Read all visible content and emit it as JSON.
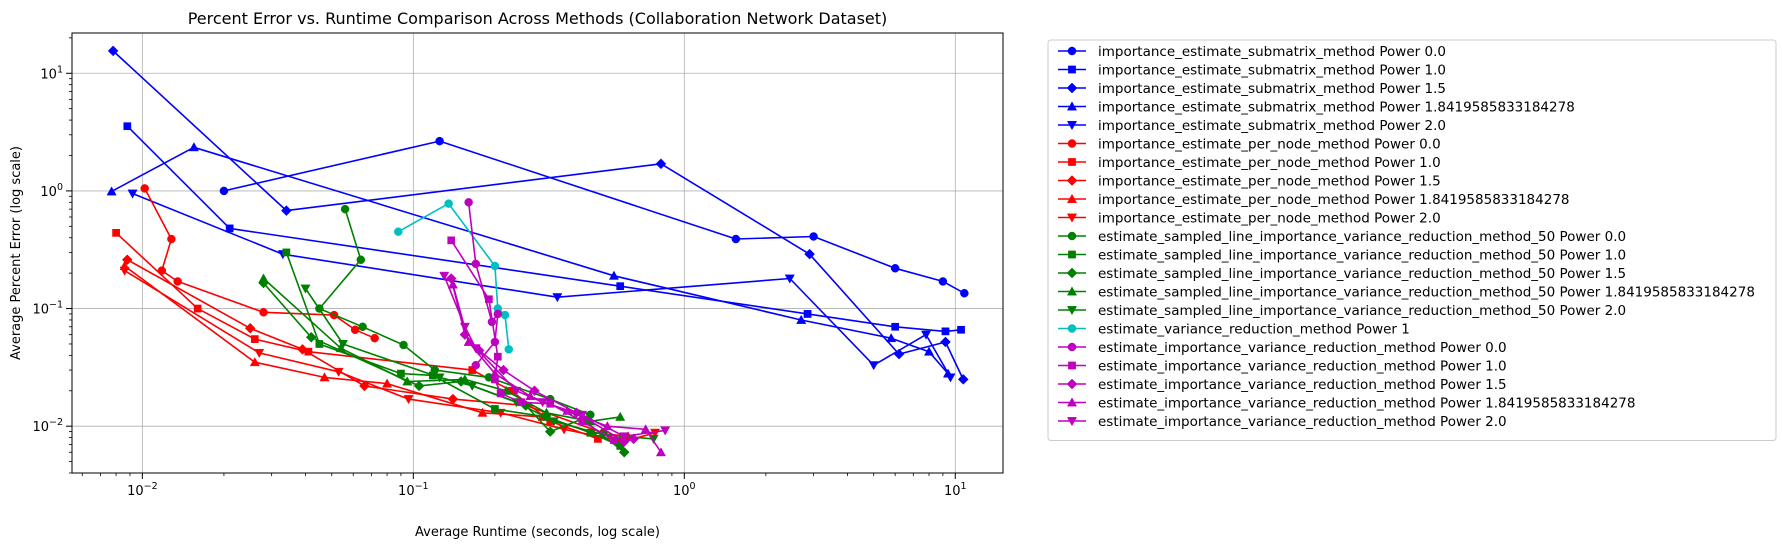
{
  "chart_data": {
    "type": "line",
    "title": "Percent Error vs. Runtime Comparison Across Methods (Collaboration Network Dataset)",
    "xlabel": "Average Runtime (seconds, log scale)",
    "ylabel": "Average Percent Error (log scale)",
    "xscale": "log",
    "yscale": "log",
    "xlim": [
      0.0055,
      15
    ],
    "ylim": [
      0.004,
      22
    ],
    "xticks": [
      {
        "value": 0.01,
        "base": "10",
        "exp": "−2"
      },
      {
        "value": 0.1,
        "base": "10",
        "exp": "−1"
      },
      {
        "value": 1,
        "base": "10",
        "exp": "0"
      },
      {
        "value": 10,
        "base": "10",
        "exp": "1"
      }
    ],
    "yticks": [
      {
        "value": 0.01,
        "base": "10",
        "exp": "−2"
      },
      {
        "value": 0.1,
        "base": "10",
        "exp": "−1"
      },
      {
        "value": 1,
        "base": "10",
        "exp": "0"
      },
      {
        "value": 10,
        "base": "10",
        "exp": "1"
      }
    ],
    "grid": true,
    "legend_position": "outside-right",
    "series": [
      {
        "name": "importance_estimate_submatrix_method Power 0.0",
        "color": "#0000ff",
        "marker": "circle",
        "x": [
          0.02,
          0.125,
          1.55,
          3.0,
          6.0,
          9.0,
          10.8
        ],
        "y": [
          1.0,
          2.65,
          0.39,
          0.41,
          0.22,
          0.17,
          0.135
        ]
      },
      {
        "name": "importance_estimate_submatrix_method Power 1.0",
        "color": "#0000ff",
        "marker": "square",
        "x": [
          0.0088,
          0.021,
          0.58,
          2.85,
          6.0,
          9.2,
          10.5
        ],
        "y": [
          3.55,
          0.48,
          0.155,
          0.09,
          0.07,
          0.064,
          0.066
        ]
      },
      {
        "name": "importance_estimate_submatrix_method Power 1.5",
        "color": "#0000ff",
        "marker": "diamond",
        "x": [
          0.0078,
          0.034,
          0.82,
          2.9,
          6.2,
          9.2,
          10.7
        ],
        "y": [
          15.5,
          0.68,
          1.7,
          0.29,
          0.041,
          0.052,
          0.025
        ]
      },
      {
        "name": "importance_estimate_submatrix_method Power 1.8419585833184278",
        "color": "#0000ff",
        "marker": "triangle-up",
        "x": [
          0.0077,
          0.0155,
          0.55,
          2.7,
          5.8,
          8.0,
          9.4
        ],
        "y": [
          0.99,
          2.35,
          0.19,
          0.08,
          0.056,
          0.043,
          0.028
        ]
      },
      {
        "name": "importance_estimate_submatrix_method Power 2.0",
        "color": "#0000ff",
        "marker": "triangle-down",
        "x": [
          0.0092,
          0.033,
          0.34,
          2.45,
          5.0,
          7.8,
          9.6
        ],
        "y": [
          0.95,
          0.29,
          0.125,
          0.18,
          0.033,
          0.06,
          0.026
        ]
      },
      {
        "name": "importance_estimate_per_node_method Power 0.0",
        "color": "#ff0000",
        "marker": "circle",
        "x": [
          0.0102,
          0.0128,
          0.0118,
          0.0135,
          0.028,
          0.051,
          0.061,
          0.072
        ],
        "y": [
          1.05,
          0.39,
          0.21,
          0.17,
          0.093,
          0.088,
          0.066,
          0.056
        ]
      },
      {
        "name": "importance_estimate_per_node_method Power 1.0",
        "color": "#ff0000",
        "marker": "square",
        "x": [
          0.008,
          0.016,
          0.026,
          0.041,
          0.165,
          0.23,
          0.32,
          0.48
        ],
        "y": [
          0.44,
          0.1,
          0.055,
          0.043,
          0.03,
          0.02,
          0.011,
          0.0078
        ]
      },
      {
        "name": "importance_estimate_per_node_method Power 1.5",
        "color": "#ff0000",
        "marker": "diamond",
        "x": [
          0.0088,
          0.025,
          0.039,
          0.066,
          0.14,
          0.26,
          0.5,
          0.58
        ],
        "y": [
          0.26,
          0.068,
          0.045,
          0.022,
          0.017,
          0.015,
          0.0088,
          0.0075
        ]
      },
      {
        "name": "importance_estimate_per_node_method Power 1.8419585833184278",
        "color": "#ff0000",
        "marker": "triangle-up",
        "x": [
          0.0086,
          0.026,
          0.047,
          0.08,
          0.18,
          0.3,
          0.46,
          0.62
        ],
        "y": [
          0.23,
          0.035,
          0.026,
          0.023,
          0.013,
          0.012,
          0.0088,
          0.0082
        ]
      },
      {
        "name": "importance_estimate_per_node_method Power 2.0",
        "color": "#ff0000",
        "marker": "triangle-down",
        "x": [
          0.0086,
          0.027,
          0.053,
          0.096,
          0.21,
          0.36,
          0.6,
          0.78
        ],
        "y": [
          0.21,
          0.042,
          0.029,
          0.017,
          0.013,
          0.0094,
          0.0074,
          0.0088
        ]
      },
      {
        "name": "estimate_sampled_line_importance_variance_reduction_method_50 Power 0.0",
        "color": "#008000",
        "marker": "circle",
        "x": [
          0.056,
          0.064,
          0.045,
          0.065,
          0.092,
          0.12,
          0.19,
          0.32,
          0.45
        ],
        "y": [
          0.7,
          0.26,
          0.1,
          0.07,
          0.049,
          0.03,
          0.026,
          0.017,
          0.0125
        ]
      },
      {
        "name": "estimate_sampled_line_importance_variance_reduction_method_50 Power 1.0",
        "color": "#008000",
        "marker": "square",
        "x": [
          0.034,
          0.045,
          0.09,
          0.118,
          0.2,
          0.31,
          0.45,
          0.58
        ],
        "y": [
          0.3,
          0.05,
          0.028,
          0.027,
          0.014,
          0.012,
          0.0088,
          0.0068
        ]
      },
      {
        "name": "estimate_sampled_line_importance_variance_reduction_method_50 Power 1.5",
        "color": "#008000",
        "marker": "diamond",
        "x": [
          0.028,
          0.042,
          0.105,
          0.15,
          0.26,
          0.32,
          0.42,
          0.6
        ],
        "y": [
          0.165,
          0.057,
          0.022,
          0.024,
          0.015,
          0.009,
          0.0115,
          0.006
        ]
      },
      {
        "name": "estimate_sampled_line_importance_variance_reduction_method_50 Power 1.8419585833184278",
        "color": "#008000",
        "marker": "triangle-up",
        "x": [
          0.028,
          0.054,
          0.095,
          0.155,
          0.22,
          0.31,
          0.45,
          0.58
        ],
        "y": [
          0.18,
          0.046,
          0.024,
          0.025,
          0.02,
          0.013,
          0.011,
          0.012
        ]
      },
      {
        "name": "estimate_sampled_line_importance_variance_reduction_method_50 Power 2.0",
        "color": "#008000",
        "marker": "triangle-down",
        "x": [
          0.04,
          0.055,
          0.125,
          0.165,
          0.24,
          0.33,
          0.5,
          0.77
        ],
        "y": [
          0.148,
          0.05,
          0.026,
          0.022,
          0.016,
          0.011,
          0.0085,
          0.0078
        ]
      },
      {
        "name": "estimate_variance_reduction_method Power 1",
        "color": "#00bfbf",
        "marker": "circle",
        "x": [
          0.088,
          0.135,
          0.2,
          0.205,
          0.218,
          0.225
        ],
        "y": [
          0.45,
          0.78,
          0.23,
          0.1,
          0.088,
          0.045
        ]
      },
      {
        "name": "estimate_importance_variance_reduction_method Power 0.0",
        "color": "#bf00bf",
        "marker": "circle",
        "x": [
          0.16,
          0.17,
          0.195,
          0.205,
          0.2,
          0.17
        ],
        "y": [
          0.8,
          0.24,
          0.077,
          0.09,
          0.052,
          0.033
        ]
      },
      {
        "name": "estimate_importance_variance_reduction_method Power 1.0",
        "color": "#bf00bf",
        "marker": "square",
        "x": [
          0.138,
          0.19,
          0.205,
          0.2,
          0.21,
          0.25,
          0.32,
          0.42,
          0.55
        ],
        "y": [
          0.38,
          0.12,
          0.039,
          0.025,
          0.019,
          0.016,
          0.0155,
          0.011,
          0.0076
        ]
      },
      {
        "name": "estimate_importance_variance_reduction_method Power 1.5",
        "color": "#bf00bf",
        "marker": "diamond",
        "x": [
          0.138,
          0.155,
          0.175,
          0.215,
          0.28,
          0.4,
          0.6,
          0.65
        ],
        "y": [
          0.18,
          0.06,
          0.044,
          0.03,
          0.02,
          0.013,
          0.0074,
          0.0078
        ]
      },
      {
        "name": "estimate_importance_variance_reduction_method Power 1.8419585833184278",
        "color": "#bf00bf",
        "marker": "triangle-up",
        "x": [
          0.14,
          0.16,
          0.2,
          0.27,
          0.37,
          0.52,
          0.72,
          0.82
        ],
        "y": [
          0.16,
          0.052,
          0.028,
          0.018,
          0.0135,
          0.01,
          0.0094,
          0.006
        ]
      },
      {
        "name": "estimate_importance_variance_reduction_method Power 2.0",
        "color": "#bf00bf",
        "marker": "triangle-down",
        "x": [
          0.13,
          0.155,
          0.17,
          0.24,
          0.3,
          0.42,
          0.6,
          0.85
        ],
        "y": [
          0.19,
          0.07,
          0.046,
          0.02,
          0.016,
          0.0125,
          0.0082,
          0.0092
        ]
      }
    ]
  }
}
